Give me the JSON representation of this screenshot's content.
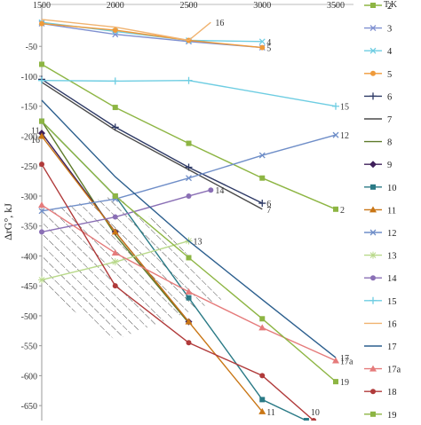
{
  "chart_data": {
    "type": "line",
    "title": "",
    "xlabel": "",
    "ylabel": "ΔrG°, kJ",
    "xlim": [
      1500,
      3500
    ],
    "ylim": [
      -675,
      20
    ],
    "x_ticks": [
      1500,
      2000,
      2500,
      3000,
      3500
    ],
    "y_ticks": [
      -50,
      -100,
      -150,
      -200,
      -250,
      -300,
      -350,
      -400,
      -450,
      -500,
      -550,
      -600,
      -650
    ],
    "legend_title": "T,K",
    "grid": false,
    "series": [
      {
        "name": "2",
        "color": "#8db543",
        "marker": "square",
        "x": [
          1500,
          2000,
          2500,
          3000,
          3500
        ],
        "y": [
          -80,
          -152,
          -212,
          -270,
          -322
        ],
        "label": "2"
      },
      {
        "name": "3",
        "color": "#7e8fd0",
        "marker": "x",
        "x": [
          1500,
          2000,
          2500,
          3000
        ],
        "y": [
          -12,
          -30,
          -42,
          -52
        ]
      },
      {
        "name": "4",
        "color": "#6ecde2",
        "marker": "x",
        "x": [
          1500,
          2000,
          2500,
          3000
        ],
        "y": [
          -10,
          -25,
          -40,
          -42
        ],
        "label": "4"
      },
      {
        "name": "5",
        "color": "#ef9a3a",
        "marker": "circle",
        "x": [
          1500,
          2000,
          2500,
          3000
        ],
        "y": [
          -12,
          -23,
          -40,
          -52
        ],
        "label": "5"
      },
      {
        "name": "6",
        "color": "#2e3a66",
        "marker": "plus",
        "x": [
          1500,
          2000,
          2500,
          3000
        ],
        "y": [
          -105,
          -185,
          -252,
          -312
        ],
        "label": "6"
      },
      {
        "name": "7",
        "color": "#4a4a4a",
        "marker": "none",
        "x": [
          1500,
          2000,
          2500,
          3000
        ],
        "y": [
          -110,
          -190,
          -256,
          -322
        ],
        "label": "7"
      },
      {
        "name": "8",
        "color": "#5e7a2a",
        "marker": "none",
        "x": [
          1500,
          2000,
          2500
        ],
        "y": [
          -175,
          -365,
          -512
        ]
      },
      {
        "name": "9",
        "color": "#3e1f5a",
        "marker": "diamond",
        "x": [
          1500,
          2000,
          2500
        ],
        "y": [
          -195,
          -360,
          -510
        ]
      },
      {
        "name": "10",
        "color": "#2a7a86",
        "marker": "square",
        "x": [
          1500,
          2000,
          2500,
          3000,
          3300
        ],
        "y": [
          -175,
          -300,
          -470,
          -640,
          -675
        ],
        "label": "10"
      },
      {
        "name": "11",
        "color": "#c97615",
        "marker": "triangle",
        "x": [
          1500,
          2000,
          2500,
          3000
        ],
        "y": [
          -200,
          -360,
          -510,
          -660
        ],
        "label": "11"
      },
      {
        "name": "12",
        "color": "#6f8ec8",
        "marker": "x",
        "x": [
          1500,
          2000,
          2500,
          3000,
          3500
        ],
        "y": [
          -325,
          -305,
          -270,
          -232,
          -198
        ],
        "label": "12"
      },
      {
        "name": "13",
        "color": "#b9d98b",
        "marker": "star",
        "x": [
          1500,
          2000,
          2500
        ],
        "y": [
          -440,
          -410,
          -375
        ],
        "label": "13"
      },
      {
        "name": "14",
        "color": "#8a6fb5",
        "marker": "circle",
        "x": [
          1500,
          2000,
          2500,
          2650
        ],
        "y": [
          -360,
          -335,
          -300,
          -290
        ],
        "label": "14"
      },
      {
        "name": "15",
        "color": "#6ecde2",
        "marker": "plus",
        "x": [
          1500,
          2000,
          2500,
          3500
        ],
        "y": [
          -107,
          -108,
          -107,
          -150
        ],
        "label": "15"
      },
      {
        "name": "16",
        "color": "#f0b370",
        "marker": "none",
        "x": [
          1500,
          2000,
          2500,
          2650
        ],
        "y": [
          -5,
          -18,
          -40,
          -10
        ],
        "label": "16"
      },
      {
        "name": "17",
        "color": "#2c5f8e",
        "marker": "none",
        "x": [
          1500,
          2000,
          2500,
          3000,
          3500
        ],
        "y": [
          -140,
          -268,
          -375,
          -473,
          -570
        ],
        "label": "17"
      },
      {
        "name": "17a",
        "color": "#e57b7b",
        "marker": "triangle",
        "x": [
          1500,
          2000,
          2500,
          3000,
          3500
        ],
        "y": [
          -315,
          -395,
          -460,
          -520,
          -575
        ],
        "label": "17a"
      },
      {
        "name": "18",
        "color": "#b03a3a",
        "marker": "circle",
        "x": [
          1500,
          2000,
          2500,
          3000,
          3350
        ],
        "y": [
          -247,
          -450,
          -545,
          -600,
          -675
        ]
      },
      {
        "name": "19",
        "color": "#8db543",
        "marker": "square",
        "x": [
          1500,
          2000,
          2500,
          3000,
          3500
        ],
        "y": [
          -175,
          -300,
          -403,
          -505,
          -610
        ],
        "label": "19"
      }
    ],
    "annotations": [
      {
        "text": "11",
        "x": 1500,
        "y": -190
      },
      {
        "text": "16",
        "x": 1500,
        "y": -205
      }
    ],
    "hatched_region": {
      "polygon": [
        [
          1500,
          -325
        ],
        [
          2000,
          -300
        ],
        [
          2300,
          -345
        ],
        [
          2750,
          -470
        ],
        [
          2000,
          -540
        ],
        [
          1500,
          -455
        ]
      ]
    }
  }
}
